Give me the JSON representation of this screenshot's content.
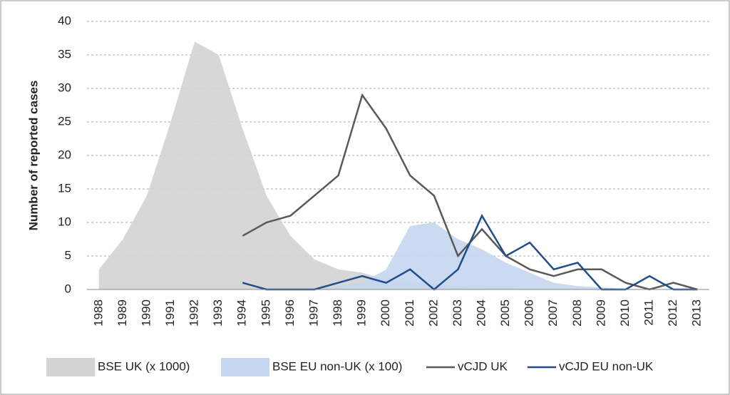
{
  "chart_data": {
    "type": "area-line",
    "y_label": "Number of reported cases",
    "categories": [
      "1988",
      "1989",
      "1990",
      "1991",
      "1992",
      "1993",
      "1994",
      "1995",
      "1996",
      "1997",
      "1998",
      "1999",
      "2000",
      "2001",
      "2002",
      "2003",
      "2004",
      "2005",
      "2006",
      "2007",
      "2008",
      "2009",
      "2010",
      "2011",
      "2012",
      "2013"
    ],
    "series": [
      {
        "name": "BSE UK (x 1000)",
        "kind": "area",
        "color": "#d3d3d3",
        "values": [
          3,
          7.5,
          14,
          25,
          37,
          35,
          24,
          14,
          8,
          4.5,
          3,
          2.5,
          1.5,
          1,
          1,
          0.5,
          0.3,
          0.2,
          0.1,
          0.1,
          0,
          0,
          0,
          0,
          0,
          0
        ]
      },
      {
        "name": "BSE EU non-UK (x 100)",
        "kind": "area",
        "color": "#c6d6f0",
        "values": [
          0,
          0,
          0,
          0,
          0,
          0,
          0,
          0,
          0,
          0,
          0.5,
          1,
          3,
          9.5,
          10,
          7.5,
          6,
          4,
          2.5,
          1,
          0.5,
          0.3,
          0.1,
          0,
          0,
          0
        ]
      },
      {
        "name": "vCJD UK",
        "kind": "line",
        "color": "#595959",
        "values": [
          null,
          null,
          null,
          null,
          null,
          null,
          8,
          10,
          11,
          14,
          17,
          29,
          24,
          17,
          14,
          5,
          9,
          5,
          3,
          2,
          3,
          3,
          1,
          0,
          1,
          0
        ]
      },
      {
        "name": "vCJD EU non-UK",
        "kind": "line",
        "color": "#1f4e8c",
        "values": [
          null,
          null,
          null,
          null,
          null,
          null,
          1,
          0,
          0,
          0,
          1,
          2,
          1,
          3,
          0,
          3,
          11,
          5,
          7,
          3,
          4,
          0,
          0,
          2,
          0,
          0
        ]
      }
    ],
    "ylim": [
      0,
      40
    ],
    "yticks": [
      0,
      5,
      10,
      15,
      20,
      25,
      30,
      35,
      40
    ],
    "grid": true
  }
}
